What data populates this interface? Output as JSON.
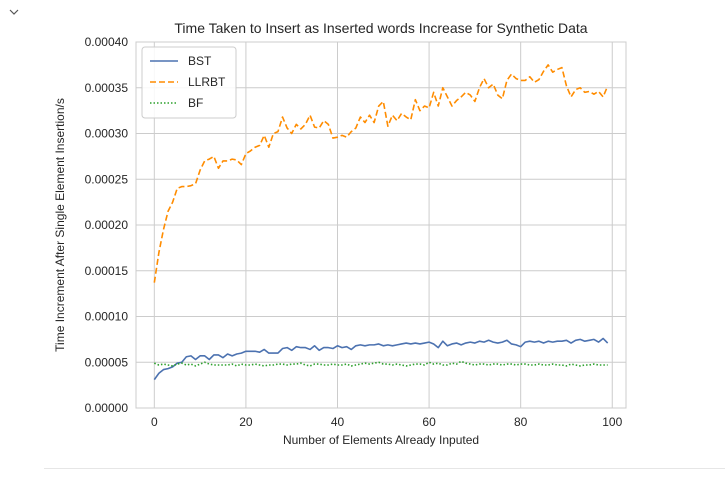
{
  "cell": {
    "toggle_icon": "chevron-down-icon"
  },
  "chart_data": {
    "type": "line",
    "title": "Time Taken to Insert as Inserted words Increase for Synthetic Data",
    "xlabel": "Number of Elements Already Inputed",
    "ylabel": "Time Increment After Single Element Insertion/s",
    "xlim": [
      -4,
      103
    ],
    "ylim": [
      0,
      0.0004
    ],
    "xticks": [
      0,
      20,
      40,
      60,
      80,
      100
    ],
    "xtick_labels": [
      "0",
      "20",
      "40",
      "60",
      "80",
      "100"
    ],
    "yticks": [
      0,
      5e-05,
      0.0001,
      0.00015,
      0.0002,
      0.00025,
      0.0003,
      0.00035,
      0.0004
    ],
    "ytick_labels": [
      "0.00000",
      "0.00005",
      "0.00010",
      "0.00015",
      "0.00020",
      "0.00025",
      "0.00030",
      "0.00035",
      "0.00040"
    ],
    "grid": true,
    "legend_position": "top-left",
    "x_start": 0,
    "x_step": 1,
    "series": [
      {
        "name": "BST",
        "color": "#4c72b0",
        "style": "solid",
        "values": [
          3.1e-05,
          3.8e-05,
          4.2e-05,
          4.3e-05,
          4.5e-05,
          4.9e-05,
          5e-05,
          5.6e-05,
          5.7e-05,
          5.3e-05,
          5.7e-05,
          5.7e-05,
          5.3e-05,
          5.8e-05,
          5.8e-05,
          5.5e-05,
          5.9e-05,
          5.7e-05,
          5.9e-05,
          6e-05,
          6.2e-05,
          6.2e-05,
          6.2e-05,
          6.1e-05,
          6.4e-05,
          6e-05,
          6e-05,
          6e-05,
          6.5e-05,
          6.6e-05,
          6.3e-05,
          6.7e-05,
          6.6e-05,
          6.6e-05,
          6.4e-05,
          6.8e-05,
          6.3e-05,
          6.6e-05,
          6.6e-05,
          6.5e-05,
          6.8e-05,
          6.6e-05,
          6.7e-05,
          6.4e-05,
          6.8e-05,
          6.9e-05,
          6.8e-05,
          6.9e-05,
          6.9e-05,
          7e-05,
          6.8e-05,
          6.9e-05,
          6.8e-05,
          6.9e-05,
          7e-05,
          7.1e-05,
          7e-05,
          7.1e-05,
          7e-05,
          7.1e-05,
          7.2e-05,
          7e-05,
          6.6e-05,
          7.3e-05,
          6.8e-05,
          7e-05,
          7.1e-05,
          6.9e-05,
          7.1e-05,
          7.2e-05,
          7.1e-05,
          7.3e-05,
          7.2e-05,
          7.4e-05,
          7.2e-05,
          7.1e-05,
          7.2e-05,
          7.4e-05,
          7e-05,
          6.9e-05,
          6.7e-05,
          7.2e-05,
          7.3e-05,
          7.2e-05,
          7.3e-05,
          7.1e-05,
          7.3e-05,
          7.2e-05,
          7.3e-05,
          7.3e-05,
          7.4e-05,
          7.1e-05,
          7.4e-05,
          7.5e-05,
          7.3e-05,
          7.4e-05,
          7.5e-05,
          7.2e-05,
          7.6e-05,
          7.1e-05
        ],
        "icon": "solid-line"
      },
      {
        "name": "LLRBT",
        "color": "#ff8c00",
        "style": "dashed",
        "values": [
          0.000137,
          0.00017,
          0.000195,
          0.000215,
          0.000225,
          0.00024,
          0.000242,
          0.000242,
          0.000243,
          0.000245,
          0.00026,
          0.00027,
          0.000272,
          0.000275,
          0.000262,
          0.00027,
          0.00027,
          0.000272,
          0.000271,
          0.000266,
          0.000278,
          0.000281,
          0.000285,
          0.000287,
          0.000298,
          0.000285,
          0.0003,
          0.000302,
          0.000318,
          0.000306,
          0.0003,
          0.00031,
          0.000305,
          0.00031,
          0.00032,
          0.000307,
          0.000306,
          0.000314,
          0.00031,
          0.000295,
          0.000296,
          0.000298,
          0.000296,
          0.000302,
          0.000306,
          0.000318,
          0.000312,
          0.00032,
          0.000312,
          0.00033,
          0.000335,
          0.000308,
          0.00032,
          0.000314,
          0.000322,
          0.000318,
          0.000315,
          0.000337,
          0.000325,
          0.00033,
          0.000328,
          0.000345,
          0.00033,
          0.00035,
          0.00034,
          0.00033,
          0.000336,
          0.00034,
          0.000345,
          0.000342,
          0.000335,
          0.00035,
          0.00036,
          0.00035,
          0.000354,
          0.000342,
          0.000338,
          0.000358,
          0.000365,
          0.00036,
          0.000358,
          0.000358,
          0.000362,
          0.000356,
          0.000359,
          0.000368,
          0.000375,
          0.000367,
          0.00037,
          0.000372,
          0.000352,
          0.00034,
          0.000348,
          0.00035,
          0.000345,
          0.000346,
          0.000343,
          0.000346,
          0.00034,
          0.000352
        ],
        "icon": "dashed-line"
      },
      {
        "name": "BF",
        "color": "#2ca02c",
        "style": "dotted",
        "values": [
          4.9e-05,
          4.7e-05,
          4.8e-05,
          4.7e-05,
          4.6e-05,
          4.8e-05,
          4.9e-05,
          4.7e-05,
          4.8e-05,
          4.6e-05,
          4.8e-05,
          5e-05,
          4.8e-05,
          4.7e-05,
          4.7e-05,
          4.7e-05,
          4.7e-05,
          4.8e-05,
          4.6e-05,
          4.8e-05,
          4.7e-05,
          4.7e-05,
          4.8e-05,
          4.7e-05,
          4.6e-05,
          4.7e-05,
          4.7e-05,
          4.8e-05,
          4.8e-05,
          4.7e-05,
          4.8e-05,
          4.8e-05,
          4.9e-05,
          4.7e-05,
          4.6e-05,
          4.8e-05,
          4.8e-05,
          4.7e-05,
          4.7e-05,
          4.8e-05,
          4.7e-05,
          4.7e-05,
          4.8e-05,
          4.6e-05,
          4.7e-05,
          4.8e-05,
          4.9e-05,
          4.8e-05,
          4.9e-05,
          5e-05,
          4.8e-05,
          4.8e-05,
          4.7e-05,
          4.8e-05,
          4.7e-05,
          4.6e-05,
          4.7e-05,
          4.8e-05,
          4.8e-05,
          4.7e-05,
          5e-05,
          4.8e-05,
          4.9e-05,
          4.7e-05,
          4.7e-05,
          4.9e-05,
          4.8e-05,
          5.1e-05,
          4.9e-05,
          4.8e-05,
          4.7e-05,
          4.8e-05,
          4.8e-05,
          4.7e-05,
          4.8e-05,
          4.8e-05,
          4.7e-05,
          4.8e-05,
          4.8e-05,
          4.7e-05,
          4.8e-05,
          4.8e-05,
          4.7e-05,
          4.7e-05,
          4.8e-05,
          4.7e-05,
          4.7e-05,
          4.8e-05,
          4.7e-05,
          4.7e-05,
          4.6e-05,
          4.8e-05,
          4.7e-05,
          4.6e-05,
          4.7e-05,
          4.7e-05,
          4.8e-05,
          4.7e-05,
          4.7e-05,
          4.7e-05
        ],
        "icon": "dotted-line"
      }
    ]
  }
}
